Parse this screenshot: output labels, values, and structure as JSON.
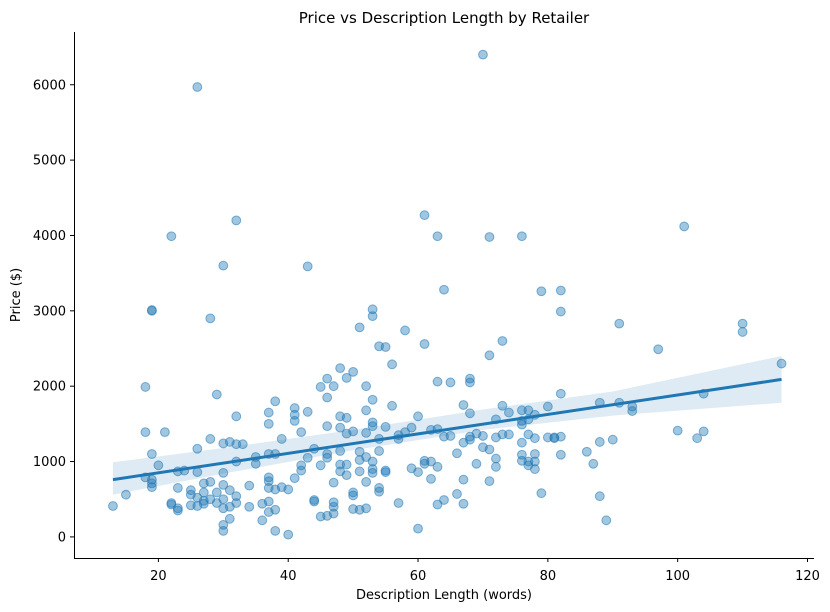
{
  "chart_data": {
    "type": "scatter",
    "title": "Price vs Description Length by Retailer",
    "xlabel": "Description Length (words)",
    "ylabel": "Price ($)",
    "xlim": [
      7,
      121
    ],
    "ylim": [
      -280,
      6700
    ],
    "xticks": [
      20,
      40,
      60,
      80,
      100,
      120
    ],
    "yticks": [
      0,
      1000,
      2000,
      3000,
      4000,
      5000,
      6000
    ],
    "grid": false,
    "legend": "none",
    "colors": {
      "point": "#1f77b4",
      "fit": "#1f77b4",
      "band": "#1f77b4"
    },
    "regression": {
      "x": [
        13,
        116
      ],
      "y": [
        760,
        2090
      ],
      "ci_x": [
        13,
        30,
        50,
        70,
        90,
        116
      ],
      "ci_upper": [
        990,
        1180,
        1420,
        1690,
        1930,
        2400
      ],
      "ci_lower": [
        560,
        840,
        1150,
        1420,
        1610,
        1780
      ]
    },
    "points": [
      [
        13,
        410
      ],
      [
        15,
        560
      ],
      [
        18,
        1390
      ],
      [
        18,
        1990
      ],
      [
        18,
        790
      ],
      [
        19,
        3000
      ],
      [
        19,
        3010
      ],
      [
        19,
        1100
      ],
      [
        19,
        760
      ],
      [
        19,
        710
      ],
      [
        19,
        660
      ],
      [
        20,
        950
      ],
      [
        21,
        1390
      ],
      [
        22,
        3990
      ],
      [
        22,
        430
      ],
      [
        22,
        450
      ],
      [
        23,
        870
      ],
      [
        23,
        650
      ],
      [
        23,
        380
      ],
      [
        23,
        350
      ],
      [
        24,
        880
      ],
      [
        25,
        420
      ],
      [
        25,
        560
      ],
      [
        25,
        620
      ],
      [
        26,
        5970
      ],
      [
        26,
        1170
      ],
      [
        26,
        860
      ],
      [
        26,
        520
      ],
      [
        26,
        410
      ],
      [
        27,
        710
      ],
      [
        27,
        590
      ],
      [
        27,
        480
      ],
      [
        27,
        440
      ],
      [
        28,
        2900
      ],
      [
        28,
        1300
      ],
      [
        28,
        730
      ],
      [
        28,
        500
      ],
      [
        29,
        1890
      ],
      [
        29,
        590
      ],
      [
        29,
        450
      ],
      [
        30,
        3600
      ],
      [
        30,
        1240
      ],
      [
        30,
        850
      ],
      [
        30,
        690
      ],
      [
        30,
        500
      ],
      [
        30,
        380
      ],
      [
        30,
        160
      ],
      [
        30,
        80
      ],
      [
        31,
        1260
      ],
      [
        31,
        620
      ],
      [
        31,
        400
      ],
      [
        31,
        240
      ],
      [
        32,
        4200
      ],
      [
        32,
        1600
      ],
      [
        32,
        1230
      ],
      [
        32,
        1000
      ],
      [
        32,
        540
      ],
      [
        32,
        450
      ],
      [
        33,
        1230
      ],
      [
        34,
        680
      ],
      [
        34,
        400
      ],
      [
        35,
        1060
      ],
      [
        35,
        970
      ],
      [
        36,
        440
      ],
      [
        36,
        220
      ],
      [
        37,
        1650
      ],
      [
        37,
        1500
      ],
      [
        37,
        1100
      ],
      [
        37,
        790
      ],
      [
        37,
        740
      ],
      [
        37,
        650
      ],
      [
        37,
        470
      ],
      [
        37,
        330
      ],
      [
        38,
        1800
      ],
      [
        38,
        1100
      ],
      [
        38,
        630
      ],
      [
        38,
        360
      ],
      [
        38,
        80
      ],
      [
        39,
        1300
      ],
      [
        39,
        660
      ],
      [
        40,
        630
      ],
      [
        40,
        30
      ],
      [
        41,
        1710
      ],
      [
        41,
        1620
      ],
      [
        41,
        1540
      ],
      [
        41,
        780
      ],
      [
        42,
        1390
      ],
      [
        42,
        950
      ],
      [
        42,
        880
      ],
      [
        43,
        3590
      ],
      [
        43,
        1660
      ],
      [
        43,
        1050
      ],
      [
        44,
        1170
      ],
      [
        44,
        490
      ],
      [
        44,
        470
      ],
      [
        45,
        1990
      ],
      [
        45,
        950
      ],
      [
        45,
        270
      ],
      [
        46,
        2100
      ],
      [
        46,
        1850
      ],
      [
        46,
        1470
      ],
      [
        46,
        1100
      ],
      [
        46,
        1050
      ],
      [
        46,
        280
      ],
      [
        47,
        2000
      ],
      [
        47,
        720
      ],
      [
        47,
        460
      ],
      [
        47,
        400
      ],
      [
        47,
        310
      ],
      [
        48,
        2240
      ],
      [
        48,
        1600
      ],
      [
        48,
        1450
      ],
      [
        48,
        1140
      ],
      [
        48,
        960
      ],
      [
        48,
        870
      ],
      [
        49,
        2110
      ],
      [
        49,
        1580
      ],
      [
        49,
        1370
      ],
      [
        49,
        960
      ],
      [
        49,
        820
      ],
      [
        50,
        2190
      ],
      [
        50,
        1400
      ],
      [
        50,
        590
      ],
      [
        50,
        550
      ],
      [
        50,
        370
      ],
      [
        51,
        2780
      ],
      [
        51,
        1130
      ],
      [
        51,
        1020
      ],
      [
        51,
        870
      ],
      [
        51,
        360
      ],
      [
        52,
        2000
      ],
      [
        52,
        1680
      ],
      [
        52,
        1380
      ],
      [
        52,
        1060
      ],
      [
        52,
        730
      ],
      [
        52,
        380
      ],
      [
        53,
        3020
      ],
      [
        53,
        2930
      ],
      [
        53,
        1820
      ],
      [
        53,
        1520
      ],
      [
        53,
        1470
      ],
      [
        53,
        1000
      ],
      [
        53,
        900
      ],
      [
        53,
        850
      ],
      [
        54,
        2530
      ],
      [
        54,
        1300
      ],
      [
        54,
        1140
      ],
      [
        54,
        650
      ],
      [
        54,
        600
      ],
      [
        55,
        2520
      ],
      [
        55,
        1460
      ],
      [
        55,
        880
      ],
      [
        55,
        860
      ],
      [
        56,
        2290
      ],
      [
        56,
        1740
      ],
      [
        57,
        1350
      ],
      [
        57,
        1300
      ],
      [
        57,
        450
      ],
      [
        58,
        2740
      ],
      [
        58,
        1390
      ],
      [
        59,
        1450
      ],
      [
        59,
        910
      ],
      [
        60,
        1600
      ],
      [
        60,
        860
      ],
      [
        60,
        110
      ],
      [
        61,
        4270
      ],
      [
        61,
        2560
      ],
      [
        61,
        1010
      ],
      [
        61,
        970
      ],
      [
        62,
        1420
      ],
      [
        62,
        1000
      ],
      [
        62,
        770
      ],
      [
        63,
        3990
      ],
      [
        63,
        2060
      ],
      [
        63,
        1430
      ],
      [
        63,
        930
      ],
      [
        63,
        430
      ],
      [
        64,
        3280
      ],
      [
        64,
        1330
      ],
      [
        64,
        490
      ],
      [
        65,
        2050
      ],
      [
        65,
        1340
      ],
      [
        66,
        1110
      ],
      [
        66,
        570
      ],
      [
        67,
        1750
      ],
      [
        67,
        1250
      ],
      [
        67,
        760
      ],
      [
        67,
        440
      ],
      [
        68,
        2100
      ],
      [
        68,
        2050
      ],
      [
        68,
        1640
      ],
      [
        68,
        1330
      ],
      [
        68,
        1290
      ],
      [
        69,
        1370
      ],
      [
        69,
        970
      ],
      [
        70,
        6400
      ],
      [
        70,
        1340
      ],
      [
        70,
        1190
      ],
      [
        71,
        3980
      ],
      [
        71,
        2410
      ],
      [
        71,
        1160
      ],
      [
        71,
        740
      ],
      [
        72,
        1560
      ],
      [
        72,
        1320
      ],
      [
        72,
        1040
      ],
      [
        72,
        930
      ],
      [
        73,
        2600
      ],
      [
        73,
        1740
      ],
      [
        73,
        1360
      ],
      [
        74,
        1650
      ],
      [
        74,
        1360
      ],
      [
        76,
        3990
      ],
      [
        76,
        1680
      ],
      [
        76,
        1540
      ],
      [
        76,
        1490
      ],
      [
        76,
        1250
      ],
      [
        76,
        1090
      ],
      [
        76,
        1010
      ],
      [
        77,
        1680
      ],
      [
        77,
        1560
      ],
      [
        77,
        1360
      ],
      [
        77,
        1000
      ],
      [
        77,
        950
      ],
      [
        78,
        1620
      ],
      [
        78,
        1310
      ],
      [
        78,
        1100
      ],
      [
        78,
        1000
      ],
      [
        78,
        900
      ],
      [
        79,
        3260
      ],
      [
        79,
        580
      ],
      [
        80,
        1730
      ],
      [
        80,
        1320
      ],
      [
        81,
        1310
      ],
      [
        81,
        1320
      ],
      [
        82,
        3270
      ],
      [
        82,
        2990
      ],
      [
        82,
        1900
      ],
      [
        82,
        1330
      ],
      [
        82,
        1090
      ],
      [
        86,
        1130
      ],
      [
        87,
        970
      ],
      [
        88,
        1780
      ],
      [
        88,
        1260
      ],
      [
        88,
        540
      ],
      [
        89,
        220
      ],
      [
        90,
        1290
      ],
      [
        91,
        2830
      ],
      [
        91,
        1780
      ],
      [
        93,
        1730
      ],
      [
        93,
        1670
      ],
      [
        97,
        2490
      ],
      [
        100,
        1410
      ],
      [
        101,
        4120
      ],
      [
        103,
        1310
      ],
      [
        104,
        1400
      ],
      [
        104,
        1900
      ],
      [
        110,
        2830
      ],
      [
        110,
        2720
      ],
      [
        116,
        2300
      ]
    ]
  }
}
